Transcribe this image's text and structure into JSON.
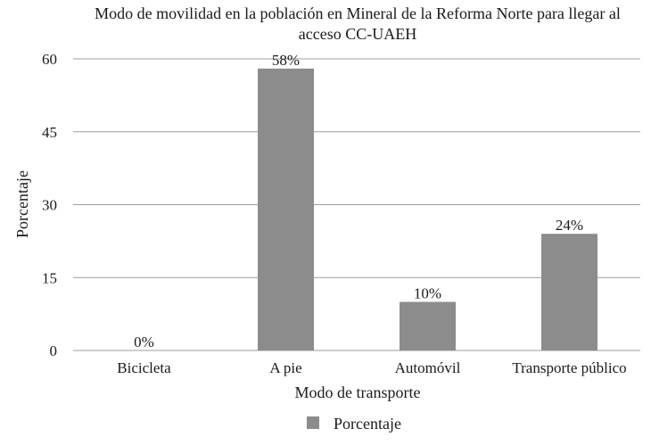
{
  "chart_data": {
    "type": "bar",
    "title": "Modo de movilidad en la población en Mineral de la Reforma Norte para llegar al acceso CC-UAEH",
    "title_lines": [
      "Modo de movilidad en la población en Mineral de la Reforma Norte para llegar al",
      "acceso CC-UAEH"
    ],
    "xlabel": "Modo de transporte",
    "ylabel": "Porcentaje",
    "categories": [
      "Bicicleta",
      "A pie",
      "Automóvil",
      "Transporte público"
    ],
    "series": [
      {
        "name": "Porcentaje",
        "values": [
          0,
          58,
          10,
          24
        ],
        "labels": [
          "0%",
          "58%",
          "10%",
          "24%"
        ],
        "color": "#8c8c8c"
      }
    ],
    "ylim": [
      0,
      60
    ],
    "yticks": [
      0,
      15,
      30,
      45,
      60
    ],
    "ytick_labels": [
      "0",
      "15",
      "30",
      "45",
      "60"
    ],
    "grid": true,
    "legend_position": "bottom"
  }
}
